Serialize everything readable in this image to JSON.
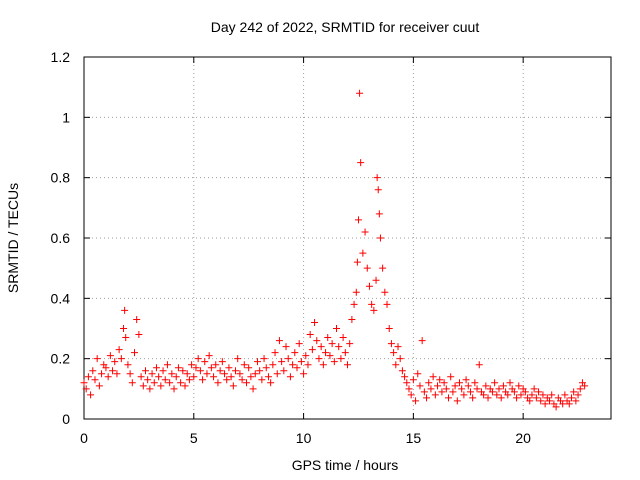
{
  "chart_data": {
    "type": "scatter",
    "title": "Day 242 of 2022, SRMTID for receiver cuut",
    "xlabel": "GPS time / hours",
    "ylabel": "SRMTID / TECUs",
    "xlim": [
      0,
      24
    ],
    "ylim": [
      0,
      1.2
    ],
    "xticks": [
      0,
      5,
      10,
      15,
      20
    ],
    "xtick_labels": [
      "0",
      "5",
      "10",
      "15",
      "20"
    ],
    "yticks": [
      0,
      0.2,
      0.4,
      0.6,
      0.8,
      1.0,
      1.2
    ],
    "ytick_labels": [
      "0",
      "0.2",
      "0.4",
      "0.6",
      "0.8",
      "1",
      "1.2"
    ],
    "grid": true,
    "marker": "+",
    "series": [
      {
        "name": "SRMTID",
        "color": "#ff0000",
        "x": [
          0.0,
          0.1,
          0.2,
          0.3,
          0.4,
          0.5,
          0.6,
          0.7,
          0.8,
          0.9,
          1.0,
          1.1,
          1.2,
          1.3,
          1.4,
          1.5,
          1.6,
          1.7,
          1.8,
          1.85,
          1.9,
          2.0,
          2.1,
          2.2,
          2.3,
          2.4,
          2.5,
          2.6,
          2.7,
          2.8,
          2.9,
          3.0,
          3.1,
          3.2,
          3.3,
          3.4,
          3.5,
          3.6,
          3.7,
          3.8,
          3.9,
          4.0,
          4.1,
          4.2,
          4.3,
          4.4,
          4.5,
          4.6,
          4.7,
          4.8,
          4.9,
          5.0,
          5.1,
          5.2,
          5.3,
          5.4,
          5.5,
          5.6,
          5.7,
          5.8,
          5.9,
          6.0,
          6.1,
          6.2,
          6.3,
          6.4,
          6.5,
          6.6,
          6.7,
          6.8,
          6.9,
          7.0,
          7.1,
          7.2,
          7.3,
          7.4,
          7.5,
          7.6,
          7.7,
          7.8,
          7.9,
          8.0,
          8.1,
          8.2,
          8.3,
          8.4,
          8.5,
          8.6,
          8.7,
          8.8,
          8.9,
          9.0,
          9.1,
          9.2,
          9.3,
          9.4,
          9.5,
          9.6,
          9.7,
          9.8,
          9.9,
          10.0,
          10.1,
          10.2,
          10.3,
          10.4,
          10.5,
          10.6,
          10.7,
          10.8,
          10.9,
          11.0,
          11.1,
          11.2,
          11.3,
          11.4,
          11.5,
          11.6,
          11.7,
          11.8,
          11.9,
          12.0,
          12.1,
          12.2,
          12.3,
          12.4,
          12.45,
          12.5,
          12.55,
          12.6,
          12.7,
          12.8,
          12.9,
          13.0,
          13.1,
          13.2,
          13.3,
          13.35,
          13.4,
          13.45,
          13.5,
          13.6,
          13.7,
          13.8,
          13.9,
          14.0,
          14.1,
          14.2,
          14.3,
          14.4,
          14.5,
          14.6,
          14.7,
          14.8,
          14.9,
          15.0,
          15.1,
          15.2,
          15.3,
          15.4,
          15.5,
          15.6,
          15.7,
          15.8,
          15.9,
          16.0,
          16.1,
          16.2,
          16.3,
          16.4,
          16.5,
          16.6,
          16.7,
          16.8,
          16.9,
          17.0,
          17.1,
          17.2,
          17.3,
          17.4,
          17.5,
          17.6,
          17.7,
          17.8,
          17.9,
          18.0,
          18.1,
          18.2,
          18.3,
          18.4,
          18.5,
          18.6,
          18.7,
          18.8,
          18.9,
          19.0,
          19.1,
          19.2,
          19.3,
          19.4,
          19.5,
          19.6,
          19.7,
          19.8,
          19.9,
          20.0,
          20.1,
          20.2,
          20.3,
          20.4,
          20.5,
          20.6,
          20.7,
          20.8,
          20.9,
          21.0,
          21.1,
          21.2,
          21.3,
          21.4,
          21.5,
          21.6,
          21.7,
          21.8,
          21.9,
          22.0,
          22.1,
          22.2,
          22.3,
          22.4,
          22.5,
          22.6,
          22.7,
          22.8
        ],
        "y": [
          0.12,
          0.1,
          0.14,
          0.08,
          0.16,
          0.13,
          0.2,
          0.11,
          0.15,
          0.18,
          0.17,
          0.14,
          0.21,
          0.16,
          0.19,
          0.15,
          0.23,
          0.2,
          0.3,
          0.36,
          0.27,
          0.18,
          0.15,
          0.12,
          0.22,
          0.33,
          0.28,
          0.14,
          0.11,
          0.16,
          0.13,
          0.1,
          0.15,
          0.12,
          0.17,
          0.14,
          0.11,
          0.16,
          0.13,
          0.18,
          0.12,
          0.15,
          0.1,
          0.14,
          0.17,
          0.12,
          0.16,
          0.11,
          0.15,
          0.13,
          0.18,
          0.14,
          0.17,
          0.2,
          0.16,
          0.13,
          0.19,
          0.15,
          0.21,
          0.17,
          0.14,
          0.18,
          0.12,
          0.16,
          0.19,
          0.15,
          0.13,
          0.17,
          0.14,
          0.11,
          0.16,
          0.2,
          0.15,
          0.13,
          0.18,
          0.12,
          0.17,
          0.14,
          0.1,
          0.15,
          0.19,
          0.16,
          0.13,
          0.2,
          0.17,
          0.14,
          0.12,
          0.18,
          0.22,
          0.15,
          0.26,
          0.19,
          0.16,
          0.24,
          0.2,
          0.14,
          0.18,
          0.22,
          0.17,
          0.25,
          0.19,
          0.15,
          0.21,
          0.18,
          0.28,
          0.23,
          0.32,
          0.26,
          0.2,
          0.24,
          0.18,
          0.22,
          0.27,
          0.21,
          0.25,
          0.19,
          0.3,
          0.24,
          0.2,
          0.27,
          0.22,
          0.18,
          0.25,
          0.33,
          0.38,
          0.42,
          0.52,
          0.66,
          1.08,
          0.85,
          0.55,
          0.62,
          0.5,
          0.44,
          0.38,
          0.36,
          0.46,
          0.8,
          0.76,
          0.68,
          0.6,
          0.5,
          0.42,
          0.38,
          0.3,
          0.25,
          0.22,
          0.18,
          0.24,
          0.2,
          0.16,
          0.14,
          0.12,
          0.1,
          0.08,
          0.13,
          0.06,
          0.15,
          0.11,
          0.26,
          0.09,
          0.07,
          0.12,
          0.1,
          0.14,
          0.08,
          0.11,
          0.13,
          0.09,
          0.12,
          0.1,
          0.07,
          0.14,
          0.09,
          0.11,
          0.06,
          0.12,
          0.1,
          0.08,
          0.13,
          0.11,
          0.09,
          0.07,
          0.12,
          0.1,
          0.18,
          0.09,
          0.08,
          0.11,
          0.07,
          0.1,
          0.09,
          0.12,
          0.08,
          0.1,
          0.07,
          0.11,
          0.09,
          0.08,
          0.12,
          0.1,
          0.09,
          0.07,
          0.11,
          0.08,
          0.1,
          0.09,
          0.07,
          0.06,
          0.08,
          0.1,
          0.07,
          0.09,
          0.06,
          0.08,
          0.05,
          0.07,
          0.06,
          0.08,
          0.05,
          0.04,
          0.07,
          0.06,
          0.05,
          0.08,
          0.06,
          0.05,
          0.07,
          0.09,
          0.06,
          0.08,
          0.1,
          0.12,
          0.11
        ]
      }
    ]
  }
}
